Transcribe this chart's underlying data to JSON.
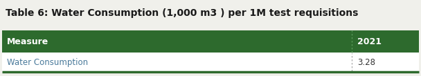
{
  "title": "Table 6: Water Consumption (1,000 m3 ) per 1M test requisitions",
  "header": [
    "Measure",
    "2021"
  ],
  "rows": [
    [
      "Water Consumption",
      "3.28"
    ]
  ],
  "header_bg": "#2d6a2d",
  "header_text_color": "#ffffff",
  "row_bg": "#ffffff",
  "row_text_color": "#4a7a9b",
  "value_text_color": "#333333",
  "bottom_line_color": "#2d6a2d",
  "title_color": "#1a1a1a",
  "title_fontsize": 10.0,
  "header_fontsize": 9.0,
  "row_fontsize": 8.5,
  "col_split": 0.835,
  "background_color": "#f0f0eb"
}
